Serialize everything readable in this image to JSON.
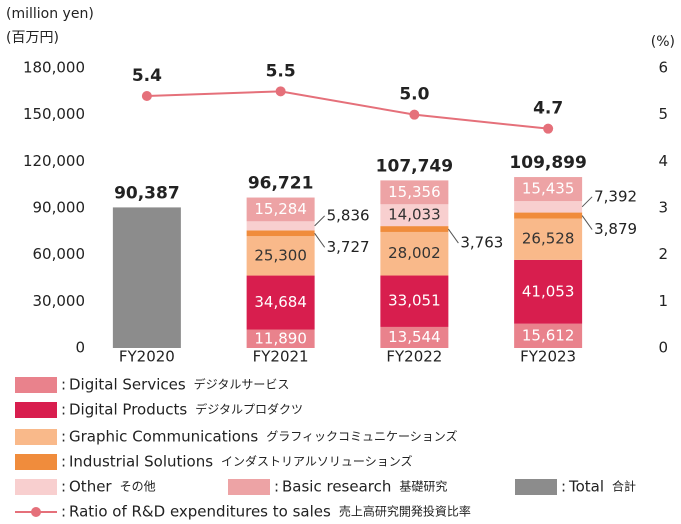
{
  "chart_data": {
    "type": "stacked_bar_line",
    "y_label": "(million yen)",
    "y_label_ja": "(百万円)",
    "y2_label": "(%)",
    "categories": [
      "FY2020",
      "FY2021",
      "FY2022",
      "FY2023"
    ],
    "ylim": [
      0,
      180000
    ],
    "yticks": [
      0,
      {
        "value": 30000,
        "label": "30,000"
      },
      {
        "value": 60000,
        "label": "60,000"
      },
      {
        "value": 90000,
        "label": "90,000"
      },
      {
        "value": 120000,
        "label": "120,000"
      },
      {
        "value": 150000,
        "label": "150,000"
      },
      {
        "value": 180000,
        "label": "180,000"
      }
    ],
    "y2lim": [
      0,
      6
    ],
    "y2ticks": [
      0,
      1,
      2,
      3,
      4,
      5,
      6
    ],
    "legend_separator": ":",
    "series": [
      {
        "name": "Digital Services",
        "name_ja": "デジタルサービス",
        "color": "#e9828c",
        "label_color": "#ffffff",
        "values": [
          null,
          11890,
          13544,
          15612
        ],
        "value_labels": [
          null,
          "11,890",
          "13,544",
          "15,612"
        ]
      },
      {
        "name": "Digital Products",
        "name_ja": "デジタルプロダクツ",
        "color": "#d81e4e",
        "label_color": "#ffffff",
        "values": [
          null,
          34684,
          33051,
          41053
        ],
        "value_labels": [
          null,
          "34,684",
          "33,051",
          "41,053"
        ]
      },
      {
        "name": "Graphic Communications",
        "name_ja": "グラフィックコミュニケーションズ",
        "color": "#f9b98a",
        "label_color": "#333333",
        "values": [
          null,
          25300,
          28002,
          26528
        ],
        "value_labels": [
          null,
          "25,300",
          "28,002",
          "26,528"
        ]
      },
      {
        "name": "Industrial Solutions",
        "name_ja": "インダストリアルソリューションズ",
        "color": "#f08c3c",
        "label_color": "#333333",
        "values": [
          null,
          3727,
          3763,
          3879
        ],
        "value_labels": [
          null,
          "3,727",
          "3,763",
          "3,879"
        ]
      },
      {
        "name": "Other",
        "name_ja": "その他",
        "color": "#f8cfcf",
        "label_color": "#333333",
        "values": [
          null,
          5836,
          14033,
          7392
        ],
        "value_labels": [
          null,
          "5,836",
          "14,033",
          "7,392"
        ]
      },
      {
        "name": "Basic research",
        "name_ja": "基礎研究",
        "color": "#eda3a5",
        "label_color": "#ffffff",
        "values": [
          null,
          15284,
          15356,
          15435
        ],
        "value_labels": [
          null,
          "15,284",
          "15,356",
          "15,435"
        ]
      }
    ],
    "total": {
      "name": "Total",
      "name_ja": "合計",
      "color": "#8c8c8c",
      "values": [
        90387,
        96721,
        107749,
        109899
      ],
      "value_labels": [
        "90,387",
        "96,721",
        "107,749",
        "109,899"
      ]
    },
    "line": {
      "name": "Ratio of R&D expenditures to sales",
      "name_ja": "売上高研究開発投資比率",
      "color": "#e5707a",
      "axis": "y2",
      "values": [
        5.4,
        5.5,
        5.0,
        4.7
      ],
      "value_labels": [
        "5.4",
        "5.5",
        "5.0",
        "4.7"
      ]
    }
  }
}
